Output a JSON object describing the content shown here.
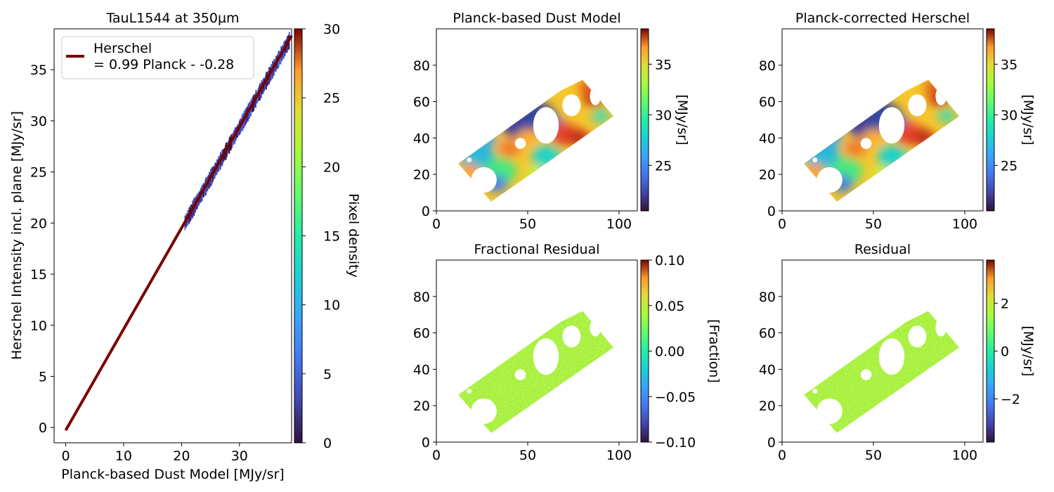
{
  "chart_data": [
    {
      "type": "scatter",
      "title": "TauL1544 at 350µm",
      "xlabel": "Planck-based Dust Model [MJy/sr]",
      "ylabel": "Herschel Intensity incl. plane [MJy/sr]",
      "xlim": [
        -2,
        39
      ],
      "ylim": [
        -1.5,
        39
      ],
      "x_ticks": [
        "0",
        "10",
        "20",
        "30"
      ],
      "y_ticks": [
        "0",
        "5",
        "10",
        "15",
        "20",
        "25",
        "30",
        "35"
      ],
      "density_cloud": {
        "x_range": [
          20.5,
          38.5
        ],
        "y_range": [
          20.8,
          38.8
        ],
        "peak_pixel_density": 3
      },
      "fit_line": {
        "slope": 0.99,
        "intercept": -0.28,
        "x_range": [
          0,
          39
        ],
        "color": "#7a0000"
      },
      "legend": {
        "position": "top-left",
        "entries": [
          "Herschel",
          "= 0.99 Planck - -0.28"
        ]
      },
      "colorbar": {
        "label": "Pixel density",
        "range": [
          0,
          30
        ],
        "ticks": [
          "0",
          "5",
          "10",
          "15",
          "20",
          "25",
          "30"
        ],
        "colormap": "turbo"
      },
      "grid": false
    },
    {
      "type": "heatmap",
      "title": "Planck-based Dust Model",
      "xlim": [
        0,
        110
      ],
      "ylim": [
        0,
        100
      ],
      "x_ticks": [
        "0",
        "50",
        "100"
      ],
      "y_ticks": [
        "0",
        "20",
        "40",
        "60",
        "80"
      ],
      "colorbar": {
        "label": "[MJy/sr]",
        "range": [
          20.5,
          38.5
        ],
        "ticks": [
          "25",
          "30",
          "35"
        ],
        "colormap": "turbo"
      },
      "grid": false
    },
    {
      "type": "heatmap",
      "title": "Planck-corrected Herschel",
      "xlim": [
        0,
        110
      ],
      "ylim": [
        0,
        100
      ],
      "x_ticks": [
        "0",
        "50",
        "100"
      ],
      "y_ticks": [
        "0",
        "20",
        "40",
        "60",
        "80"
      ],
      "colorbar": {
        "label": "[MJy/sr]",
        "range": [
          20.5,
          38.5
        ],
        "ticks": [
          "25",
          "30",
          "35"
        ],
        "colormap": "turbo"
      },
      "grid": false
    },
    {
      "type": "heatmap",
      "title": "Fractional Residual",
      "xlim": [
        0,
        110
      ],
      "ylim": [
        0,
        100
      ],
      "x_ticks": [
        "0",
        "50",
        "100"
      ],
      "y_ticks": [
        "0",
        "20",
        "40",
        "60",
        "80"
      ],
      "colorbar": {
        "label": "[Fraction]",
        "range": [
          -0.1,
          0.1
        ],
        "ticks": [
          "0.10",
          "0.05",
          "0.00",
          "−0.05",
          "−0.10"
        ],
        "colormap": "turbo"
      },
      "grid": false
    },
    {
      "type": "heatmap",
      "title": "Residual",
      "xlim": [
        0,
        110
      ],
      "ylim": [
        0,
        100
      ],
      "x_ticks": [
        "0",
        "50",
        "100"
      ],
      "y_ticks": [
        "0",
        "20",
        "40",
        "60",
        "80"
      ],
      "colorbar": {
        "label": "[MJy/sr]",
        "range": [
          -3.8,
          3.8
        ],
        "ticks": [
          "2",
          "0",
          "−2"
        ],
        "colormap": "turbo"
      },
      "grid": false
    }
  ]
}
